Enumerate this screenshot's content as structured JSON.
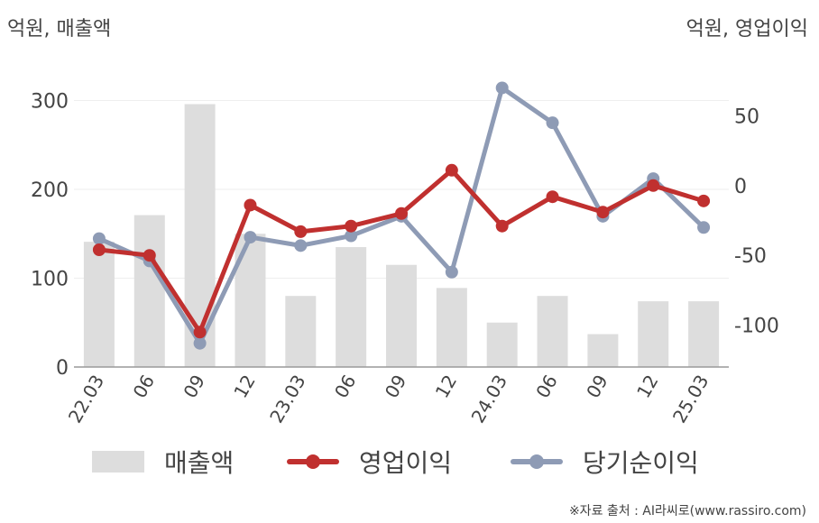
{
  "units": {
    "left": "억원, 매출액",
    "right": "억원, 영업이익"
  },
  "source": "※자료 출처 : AI라씨로(www.rassiro.com)",
  "colors": {
    "sales": "#dddddd",
    "operating_profit": "#c0302f",
    "net_income": "#8e9bb5",
    "axis": "#999999",
    "grid": "#eeeeee"
  },
  "chart_data": {
    "type": "bar+line",
    "categories": [
      "22.03",
      "06",
      "09",
      "12",
      "23.03",
      "06",
      "09",
      "12",
      "24.03",
      "06",
      "09",
      "12",
      "25.03"
    ],
    "left_axis": {
      "ticks": [
        0,
        100,
        200,
        300
      ],
      "ylim": [
        0,
        330
      ]
    },
    "right_axis": {
      "ticks": [
        50,
        0,
        -50,
        -100
      ],
      "ylim": [
        -130,
        80
      ]
    },
    "grid": true,
    "legend_position": "bottom",
    "series": [
      {
        "name": "매출액",
        "type": "bar",
        "axis": "left",
        "color": "#dddddd",
        "values": [
          141,
          171,
          296,
          150,
          80,
          135,
          115,
          89,
          50,
          80,
          37,
          74,
          74
        ]
      },
      {
        "name": "영업이익",
        "type": "line",
        "axis": "right",
        "color": "#c0302f",
        "values": [
          -46,
          -50,
          -105,
          -14,
          -33,
          -29,
          -20,
          11,
          -29,
          -8,
          -19,
          0,
          -11
        ]
      },
      {
        "name": "당기순이익",
        "type": "line",
        "axis": "right",
        "color": "#8e9bb5",
        "values": [
          -38,
          -54,
          -113,
          -37,
          -43,
          -36,
          -22,
          -62,
          70,
          45,
          -22,
          5,
          -30
        ]
      }
    ]
  }
}
